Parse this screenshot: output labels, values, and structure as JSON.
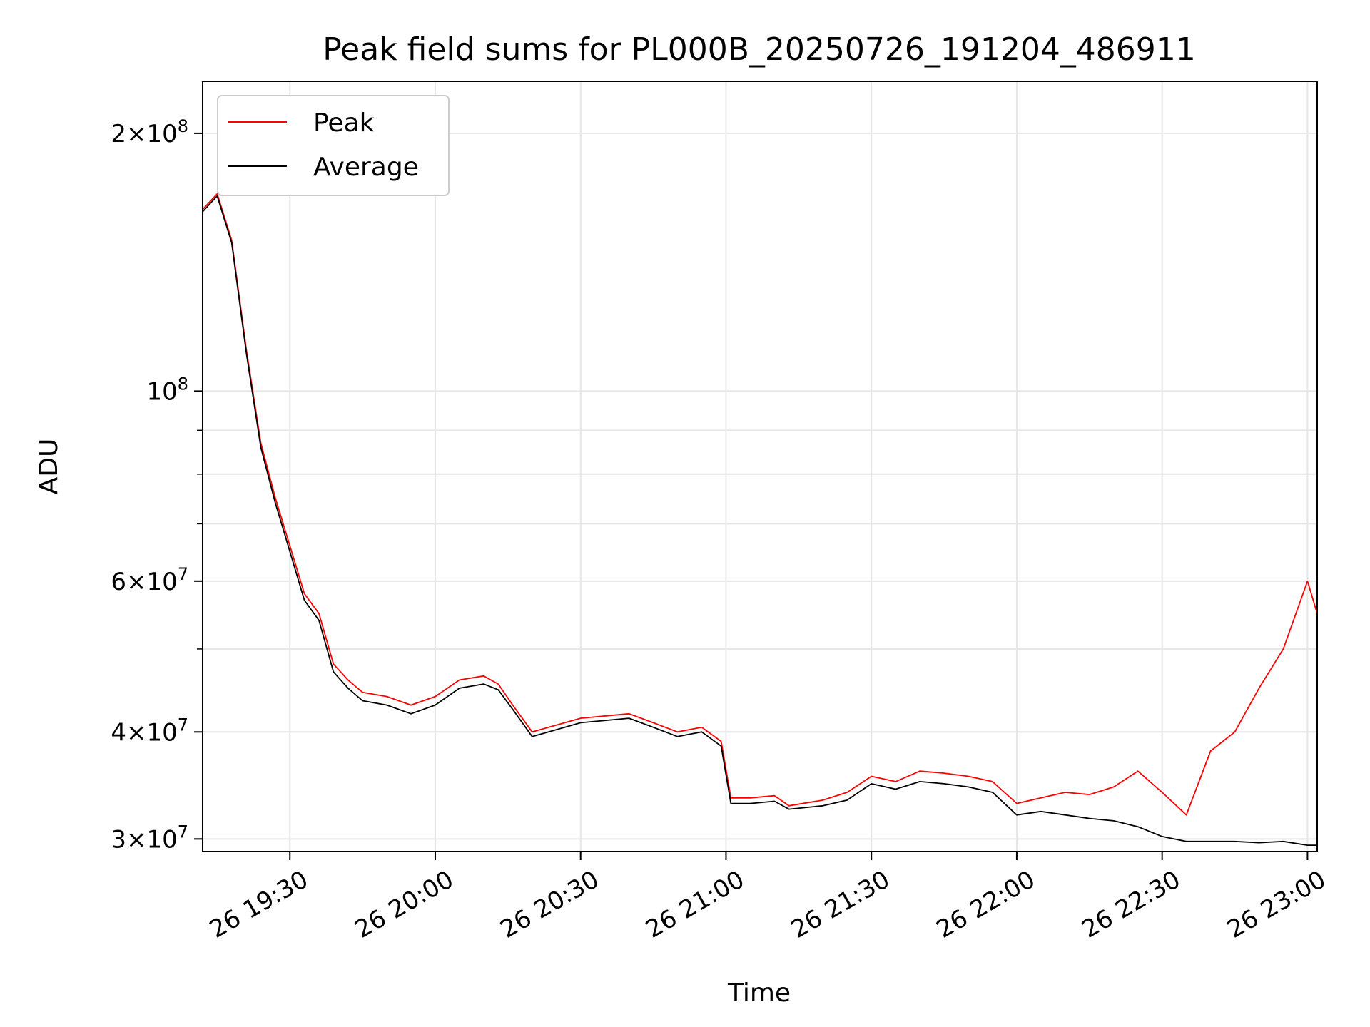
{
  "chart_data": {
    "type": "line",
    "title": "Peak field sums for PL000B_20250726_191204_486911",
    "xlabel": "Time",
    "ylabel": "ADU",
    "y_scale": "log",
    "ylim": [
      29000000,
      230000000
    ],
    "xlim": [
      "2025-07-26 19:12",
      "2025-07-26 23:02"
    ],
    "x_ticks": [
      {
        "label": "26 19:30",
        "value": "2025-07-26 19:30"
      },
      {
        "label": "26 20:00",
        "value": "2025-07-26 20:00"
      },
      {
        "label": "26 20:30",
        "value": "2025-07-26 20:30"
      },
      {
        "label": "26 21:00",
        "value": "2025-07-26 21:00"
      },
      {
        "label": "26 21:30",
        "value": "2025-07-26 21:30"
      },
      {
        "label": "26 22:00",
        "value": "2025-07-26 22:00"
      },
      {
        "label": "26 22:30",
        "value": "2025-07-26 22:30"
      },
      {
        "label": "26 23:00",
        "value": "2025-07-26 23:00"
      }
    ],
    "y_ticks": [
      {
        "mantissa": "3",
        "exponent": "7",
        "value": 30000000
      },
      {
        "mantissa": "4",
        "exponent": "7",
        "value": 40000000
      },
      {
        "mantissa": "6",
        "exponent": "7",
        "value": 60000000
      },
      {
        "mantissa": "",
        "exponent": "8",
        "value": 100000000
      },
      {
        "mantissa": "2",
        "exponent": "8",
        "value": 200000000
      }
    ],
    "grid": true,
    "legend_position": "upper-left",
    "series": [
      {
        "name": "Peak",
        "color": "#ff0000",
        "x": [
          "2025-07-26 19:12",
          "2025-07-26 19:15",
          "2025-07-26 19:18",
          "2025-07-26 19:21",
          "2025-07-26 19:24",
          "2025-07-26 19:27",
          "2025-07-26 19:30",
          "2025-07-26 19:33",
          "2025-07-26 19:36",
          "2025-07-26 19:39",
          "2025-07-26 19:42",
          "2025-07-26 19:45",
          "2025-07-26 19:50",
          "2025-07-26 19:55",
          "2025-07-26 20:00",
          "2025-07-26 20:05",
          "2025-07-26 20:10",
          "2025-07-26 20:13",
          "2025-07-26 20:16",
          "2025-07-26 20:20",
          "2025-07-26 20:30",
          "2025-07-26 20:40",
          "2025-07-26 20:45",
          "2025-07-26 20:50",
          "2025-07-26 20:55",
          "2025-07-26 20:59",
          "2025-07-26 21:01",
          "2025-07-26 21:05",
          "2025-07-26 21:10",
          "2025-07-26 21:13",
          "2025-07-26 21:20",
          "2025-07-26 21:25",
          "2025-07-26 21:30",
          "2025-07-26 21:35",
          "2025-07-26 21:40",
          "2025-07-26 21:45",
          "2025-07-26 21:50",
          "2025-07-26 21:55",
          "2025-07-26 22:00",
          "2025-07-26 22:05",
          "2025-07-26 22:10",
          "2025-07-26 22:15",
          "2025-07-26 22:20",
          "2025-07-26 22:25",
          "2025-07-26 22:30",
          "2025-07-26 22:35",
          "2025-07-26 22:40",
          "2025-07-26 22:45",
          "2025-07-26 22:50",
          "2025-07-26 22:55",
          "2025-07-26 23:00",
          "2025-07-26 23:02"
        ],
        "y": [
          163000000,
          170000000,
          150000000,
          112000000,
          87000000,
          75000000,
          66000000,
          58000000,
          55000000,
          48000000,
          46000000,
          44500000,
          44000000,
          43000000,
          44000000,
          46000000,
          46500000,
          45500000,
          43000000,
          40000000,
          41500000,
          42000000,
          41000000,
          40000000,
          40500000,
          39000000,
          33500000,
          33500000,
          33700000,
          32800000,
          33300000,
          34000000,
          35500000,
          35000000,
          36000000,
          35800000,
          35500000,
          35000000,
          33000000,
          33500000,
          34000000,
          33800000,
          34500000,
          36000000,
          34000000,
          32000000,
          38000000,
          40000000,
          45000000,
          50000000,
          60000000,
          55000000
        ]
      },
      {
        "name": "Average",
        "color": "#000000",
        "x": [
          "2025-07-26 19:12",
          "2025-07-26 19:15",
          "2025-07-26 19:18",
          "2025-07-26 19:21",
          "2025-07-26 19:24",
          "2025-07-26 19:27",
          "2025-07-26 19:30",
          "2025-07-26 19:33",
          "2025-07-26 19:36",
          "2025-07-26 19:39",
          "2025-07-26 19:42",
          "2025-07-26 19:45",
          "2025-07-26 19:50",
          "2025-07-26 19:55",
          "2025-07-26 20:00",
          "2025-07-26 20:05",
          "2025-07-26 20:10",
          "2025-07-26 20:13",
          "2025-07-26 20:16",
          "2025-07-26 20:20",
          "2025-07-26 20:30",
          "2025-07-26 20:40",
          "2025-07-26 20:45",
          "2025-07-26 20:50",
          "2025-07-26 20:55",
          "2025-07-26 20:59",
          "2025-07-26 21:01",
          "2025-07-26 21:05",
          "2025-07-26 21:10",
          "2025-07-26 21:13",
          "2025-07-26 21:20",
          "2025-07-26 21:25",
          "2025-07-26 21:30",
          "2025-07-26 21:35",
          "2025-07-26 21:40",
          "2025-07-26 21:45",
          "2025-07-26 21:50",
          "2025-07-26 21:55",
          "2025-07-26 22:00",
          "2025-07-26 22:05",
          "2025-07-26 22:10",
          "2025-07-26 22:15",
          "2025-07-26 22:20",
          "2025-07-26 22:25",
          "2025-07-26 22:30",
          "2025-07-26 22:35",
          "2025-07-26 22:40",
          "2025-07-26 22:45",
          "2025-07-26 22:50",
          "2025-07-26 22:55",
          "2025-07-26 23:00",
          "2025-07-26 23:02"
        ],
        "y": [
          162000000,
          169000000,
          149000000,
          111000000,
          86000000,
          74000000,
          65000000,
          57000000,
          54000000,
          47000000,
          45000000,
          43500000,
          43000000,
          42000000,
          43000000,
          45000000,
          45500000,
          44800000,
          42500000,
          39500000,
          41000000,
          41500000,
          40500000,
          39500000,
          40000000,
          38500000,
          33000000,
          33000000,
          33200000,
          32500000,
          32800000,
          33300000,
          34800000,
          34300000,
          35000000,
          34800000,
          34500000,
          34000000,
          32000000,
          32300000,
          32000000,
          31700000,
          31500000,
          31000000,
          30200000,
          29800000,
          29800000,
          29800000,
          29700000,
          29800000,
          29500000,
          29500000
        ]
      }
    ]
  }
}
